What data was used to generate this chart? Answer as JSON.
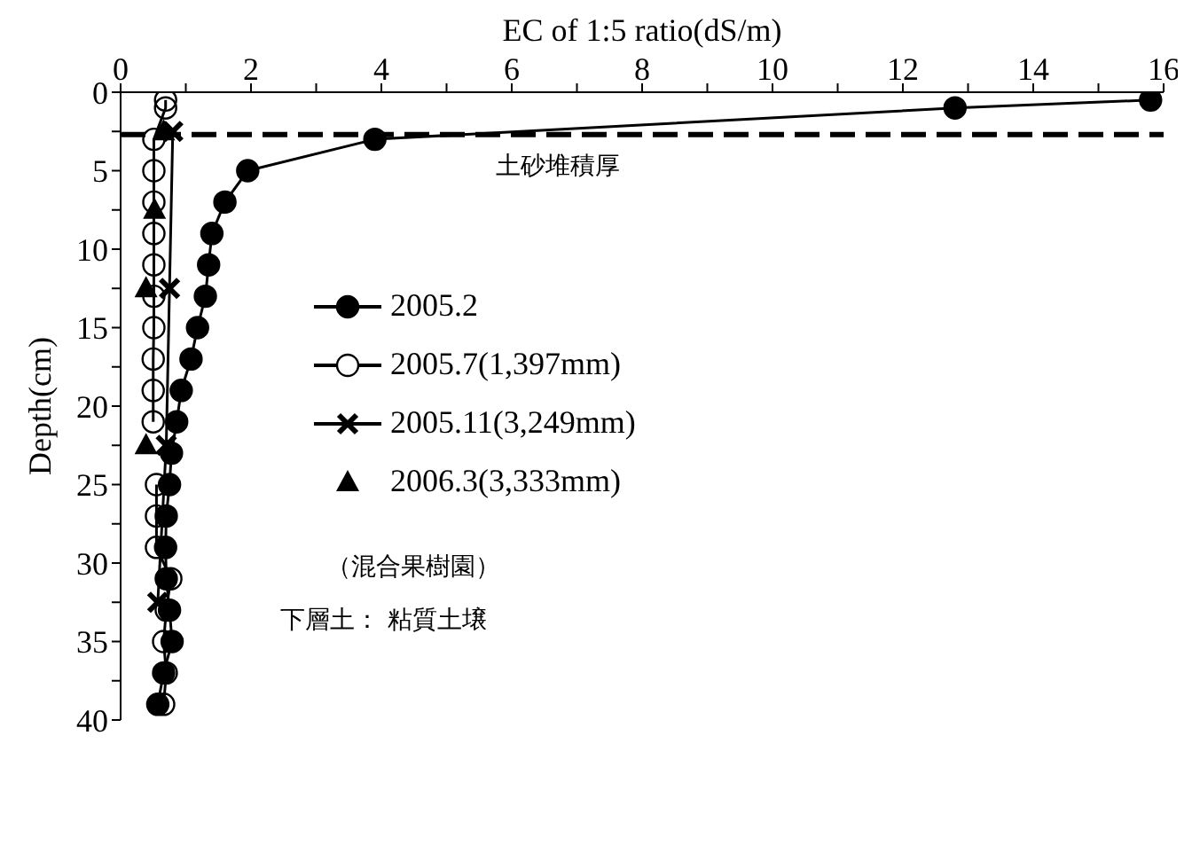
{
  "chart_data": {
    "type": "line",
    "xlabel": "EC of 1:5 ratio(dS/m)",
    "ylabel": "Depth(cm)",
    "xlim": [
      0,
      16
    ],
    "xticks": [
      0,
      {
        "value": 1,
        "label": null
      },
      2,
      {
        "value": 3,
        "label": null
      },
      4,
      {
        "value": 5,
        "label": null
      },
      6,
      {
        "value": 7,
        "label": null
      },
      8,
      {
        "value": 9,
        "label": null
      },
      10,
      {
        "value": 11,
        "label": null
      },
      12,
      {
        "value": 13,
        "label": null
      },
      14,
      {
        "value": 15,
        "label": null
      },
      16
    ],
    "ylim": [
      40,
      0
    ],
    "yticks": [
      0,
      {
        "value": 2.5,
        "label": null
      },
      5,
      {
        "value": 7.5,
        "label": null
      },
      10,
      {
        "value": 12.5,
        "label": null
      },
      15,
      {
        "value": 17.5,
        "label": null
      },
      20,
      {
        "value": 22.5,
        "label": null
      },
      25,
      {
        "value": 27.5,
        "label": null
      },
      30,
      {
        "value": 32.5,
        "label": null
      },
      35,
      {
        "value": 37.5,
        "label": null
      },
      40
    ],
    "series": [
      {
        "name": "2005.2",
        "color": "#000000",
        "marker": "circle",
        "x": [
          15.8,
          12.8,
          3.9,
          1.95,
          1.6,
          1.4,
          1.35,
          1.3,
          1.18,
          1.08,
          0.93,
          0.86,
          0.78,
          0.75,
          0.7,
          0.69,
          0.7,
          0.75,
          0.79,
          0.66,
          0.57
        ],
        "values": [
          0.5,
          1,
          3,
          5,
          7,
          9,
          11,
          13,
          15,
          17,
          19,
          21,
          23,
          25,
          27,
          29,
          31,
          33,
          35,
          37,
          39
        ]
      },
      {
        "name": "2005.7(1,397mm)",
        "color": "#000000",
        "marker": "circle",
        "x": [
          0.69,
          0.69,
          0.51,
          0.51,
          0.51,
          0.51,
          0.51,
          0.51,
          0.51,
          0.5,
          0.5,
          0.5,
          null,
          0.55,
          0.55,
          0.55,
          0.77,
          0.7,
          0.66,
          0.7,
          0.66
        ],
        "values": [
          0.5,
          1,
          3,
          5,
          7,
          9,
          11,
          13,
          15,
          17,
          19,
          21,
          null,
          25,
          27,
          29,
          31,
          33,
          35,
          37,
          39
        ]
      },
      {
        "name": "2005.11(3,249mm)",
        "color": "#000000",
        "marker": "cross",
        "x": [
          0.8,
          0.75,
          0.7,
          0.57
        ],
        "values": [
          2.5,
          12.5,
          22.5,
          32.5
        ]
      },
      {
        "name": "2006.3(3,333mm)",
        "type": "scatter",
        "color": "#000000",
        "marker": "triangle",
        "x": [
          0.66,
          0.52,
          0.39,
          0.39
        ],
        "values": [
          2.5,
          7.5,
          12.5,
          22.5
        ]
      }
    ],
    "ref_lines": [
      {
        "axis": "y",
        "value": 2.7,
        "label": "土砂堆積厚",
        "line_style": "dashed",
        "color": "#000000"
      }
    ],
    "annotations": [
      "（混合果樹園）",
      "下層土： 粘質土壌"
    ],
    "legend": "left"
  }
}
